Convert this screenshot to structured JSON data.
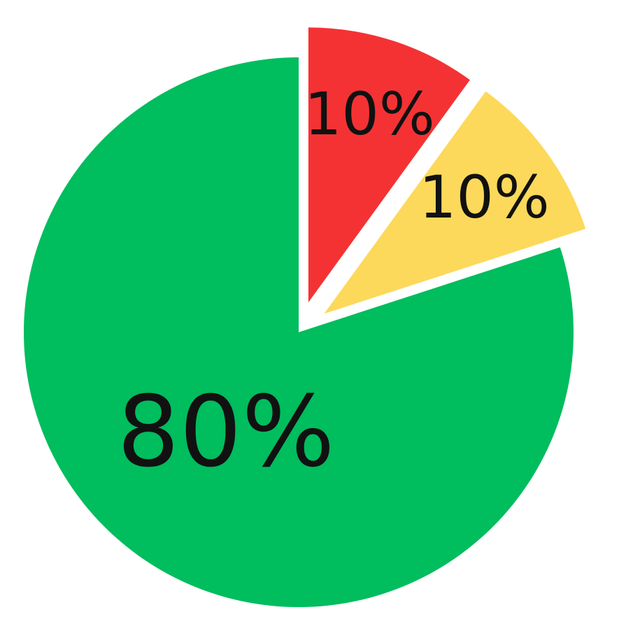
{
  "chart_data": {
    "type": "pie",
    "title": "",
    "exploded": [
      "red",
      "yellow"
    ],
    "slices": [
      {
        "label": "10%",
        "value": 10,
        "color": "#F43234"
      },
      {
        "label": "10%",
        "value": 10,
        "color": "#FCD95B"
      },
      {
        "label": "80%",
        "value": 80,
        "color": "#00BD5E"
      }
    ],
    "legend": "none"
  }
}
